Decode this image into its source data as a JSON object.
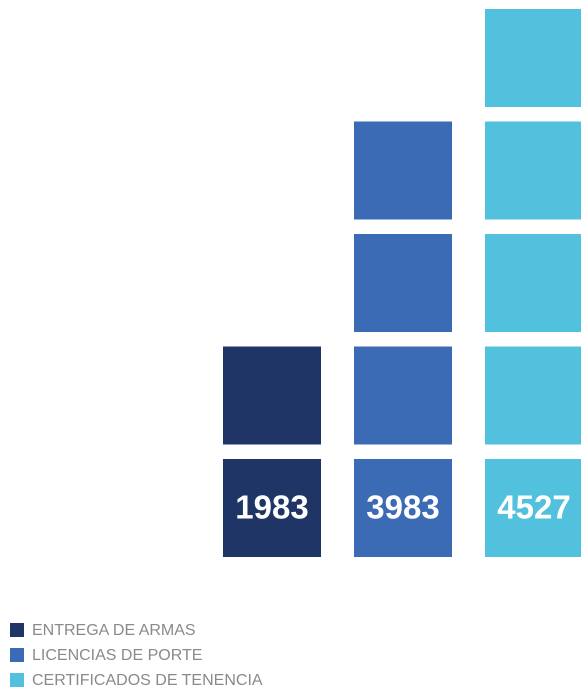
{
  "chart_data": {
    "type": "pictogram",
    "categories": [
      "ENTREGA DE ARMAS",
      "LICENCIAS DE PORTE",
      "CERTIFICADOS DE TENENCIA"
    ],
    "values": [
      1983,
      3983,
      4527
    ],
    "colors": [
      "#1f3566",
      "#3b6bb4",
      "#52c1dd"
    ],
    "legend": "bottom-left"
  }
}
